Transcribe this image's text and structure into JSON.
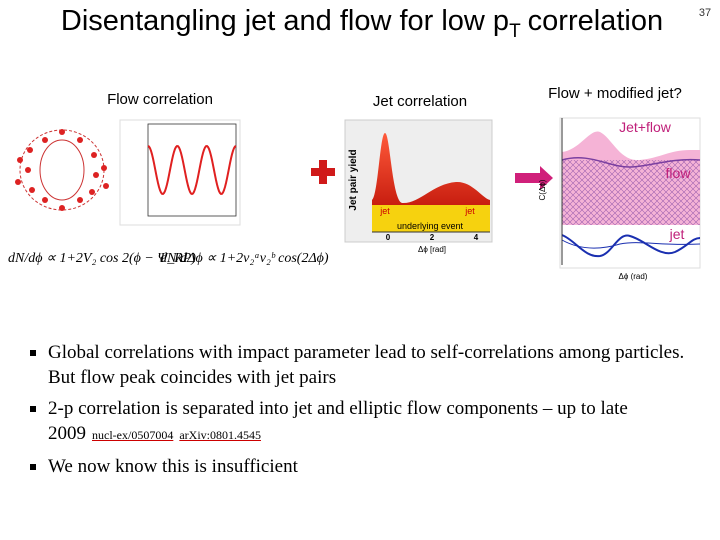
{
  "header": {
    "title": {
      "main": "Disentangling jet and flow for low p",
      "subscript": "T",
      "rest": "correlation"
    },
    "slide_number": "37"
  },
  "panels": [
    {
      "label": "Flow correlation",
      "equation": "dN/dϕ ∝ 1+2V₂ cos 2(ϕ − Ψ_RP)"
    },
    {
      "label": "Jet correlation",
      "equation": "dN/dΔϕ ∝ 1+2v₂ᵃv₂ᵇ cos(2Δϕ)",
      "figure": {
        "y_axis": "Jet pair yield",
        "band": "underlying event",
        "peaks": [
          "jet",
          "jet"
        ],
        "x_axis": "Δϕ [rad]",
        "x_ticks": [
          "0",
          "2",
          "4"
        ]
      }
    },
    {
      "label": "Flow + modified jet?",
      "figure": {
        "annotations": [
          "Jet+flow",
          "flow",
          "jet"
        ],
        "y_axis": "C(Δϕ)",
        "x_axis": "Δϕ (rad)"
      }
    }
  ],
  "bullets": [
    {
      "text": "Global correlations with impact parameter lead to self-correlations among particles. But flow peak coincides with jet pairs"
    },
    {
      "text": "2-p correlation is separated into jet and elliptic flow components – up to late 2009",
      "links": [
        "nucl-ex/0507004",
        "arXiv:0801.4545"
      ]
    },
    {
      "text": "We now know this is insufficient"
    }
  ]
}
